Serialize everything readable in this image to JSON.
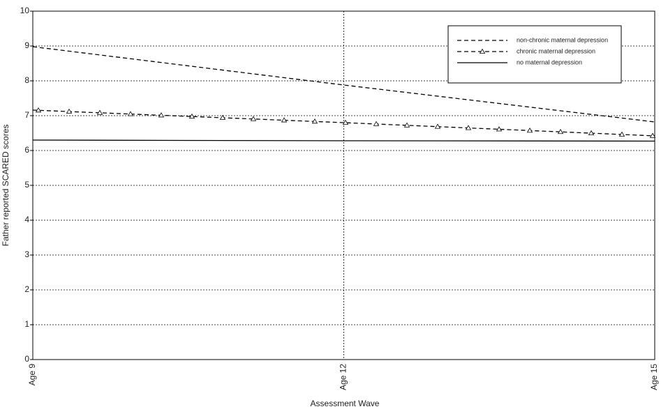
{
  "chart_data": {
    "type": "line",
    "x_label": "Assessment Wave",
    "y_label": "Father reported SCARED scores",
    "categories": [
      "Age 9",
      "Age 12",
      "Age 15"
    ],
    "series": [
      {
        "name": "non-chronic maternal depression",
        "color": "#000000",
        "line_style": "dashed",
        "values": [
          8.98,
          7.88,
          6.82
        ]
      },
      {
        "name": "chronic maternal depression",
        "color": "#000000",
        "line_style": "dashed",
        "marker": "triangle",
        "values": [
          7.16,
          6.8,
          6.42
        ]
      },
      {
        "name": "no maternal depression",
        "color": "#000000",
        "line_style": "solid",
        "values": [
          6.3,
          6.28,
          6.27
        ]
      }
    ],
    "ylim": [
      0,
      10
    ],
    "yticks": [
      0,
      1,
      2,
      3,
      4,
      5,
      6,
      7,
      8,
      9,
      10
    ],
    "grid": true,
    "legend": "upper right"
  }
}
